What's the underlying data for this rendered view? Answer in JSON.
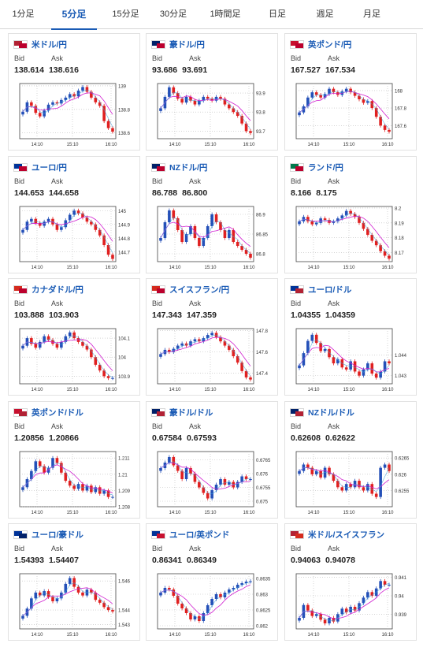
{
  "tabs": [
    {
      "label": "1分足"
    },
    {
      "label": "5分足"
    },
    {
      "label": "15分足"
    },
    {
      "label": "30分足"
    },
    {
      "label": "1時間足"
    },
    {
      "label": "日足"
    },
    {
      "label": "週足"
    },
    {
      "label": "月足"
    }
  ],
  "active_tab": "5分足",
  "labels": {
    "bid": "Bid",
    "ask": "Ask"
  },
  "colors": {
    "accent": "#1a5bb5",
    "up": "#2450b8",
    "down": "#e02020",
    "ma1": "#d020d0",
    "ma2": "#3aa0e0"
  },
  "pairs": [
    {
      "name": "米ドル/円",
      "bid": "138.614",
      "ask": "138.616",
      "flag": [
        "#b22234",
        "#bc002d"
      ]
    },
    {
      "name": "豪ドル/円",
      "bid": "93.686",
      "ask": "93.691",
      "flag": [
        "#012169",
        "#bc002d"
      ]
    },
    {
      "name": "英ポンド/円",
      "bid": "167.527",
      "ask": "167.534",
      "flag": [
        "#c8102e",
        "#bc002d"
      ]
    },
    {
      "name": "ユーロ/円",
      "bid": "144.653",
      "ask": "144.658",
      "flag": [
        "#003399",
        "#bc002d"
      ]
    },
    {
      "name": "NZドル/円",
      "bid": "86.788",
      "ask": "86.800",
      "flag": [
        "#012169",
        "#bc002d"
      ]
    },
    {
      "name": "ランド/円",
      "bid": "8.166",
      "ask": "8.175",
      "flag": [
        "#007a4d",
        "#bc002d"
      ]
    },
    {
      "name": "カナダドル/円",
      "bid": "103.888",
      "ask": "103.903",
      "flag": [
        "#d52b1e",
        "#bc002d"
      ]
    },
    {
      "name": "スイスフラン/円",
      "bid": "147.343",
      "ask": "147.359",
      "flag": [
        "#d52b1e",
        "#bc002d"
      ]
    },
    {
      "name": "ユーロ/ドル",
      "bid": "1.04355",
      "ask": "1.04359",
      "flag": [
        "#003399",
        "#b22234"
      ]
    },
    {
      "name": "英ポンド/ドル",
      "bid": "1.20856",
      "ask": "1.20866",
      "flag": [
        "#c8102e",
        "#b22234"
      ]
    },
    {
      "name": "豪ドル/ドル",
      "bid": "0.67584",
      "ask": "0.67593",
      "flag": [
        "#012169",
        "#b22234"
      ]
    },
    {
      "name": "NZドル/ドル",
      "bid": "0.62608",
      "ask": "0.62622",
      "flag": [
        "#012169",
        "#b22234"
      ]
    },
    {
      "name": "ユーロ/豪ドル",
      "bid": "1.54393",
      "ask": "1.54407",
      "flag": [
        "#003399",
        "#012169"
      ]
    },
    {
      "name": "ユーロ/英ポンド",
      "bid": "0.86341",
      "ask": "0.86349",
      "flag": [
        "#003399",
        "#c8102e"
      ]
    },
    {
      "name": "米ドル/スイスフラン",
      "bid": "0.94063",
      "ask": "0.94078",
      "flag": [
        "#b22234",
        "#d52b1e"
      ]
    }
  ],
  "chart_data": [
    {
      "type": "line",
      "series": [
        {
          "values": [
            138.78,
            138.86,
            138.83,
            138.77,
            138.74,
            138.79,
            138.84,
            138.86,
            138.85,
            138.88,
            138.9,
            138.93,
            138.91,
            138.96,
            138.99,
            138.95,
            138.9,
            138.86,
            138.83,
            138.7,
            138.64,
            138.61
          ]
        }
      ],
      "x_ticks": [
        "14:10",
        "15:10",
        "16:10"
      ],
      "y_ticks": [
        "139",
        "138.8",
        "138.6"
      ],
      "ylim": [
        138.55,
        139.02
      ]
    },
    {
      "type": "line",
      "series": [
        {
          "values": [
            93.82,
            93.88,
            93.93,
            93.9,
            93.87,
            93.85,
            93.88,
            93.86,
            93.84,
            93.86,
            93.88,
            93.87,
            93.86,
            93.88,
            93.87,
            93.84,
            93.82,
            93.8,
            93.78,
            93.74,
            93.7,
            93.69
          ]
        }
      ],
      "x_ticks": [
        "14:10",
        "15:10",
        "16:10"
      ],
      "y_ticks": [
        "93.9",
        "93.8",
        "93.7"
      ],
      "ylim": [
        93.66,
        93.95
      ]
    },
    {
      "type": "line",
      "series": [
        {
          "values": [
            167.75,
            167.82,
            167.92,
            167.98,
            167.95,
            167.92,
            167.96,
            168.02,
            167.98,
            167.95,
            167.99,
            168.02,
            167.98,
            167.94,
            167.9,
            167.86,
            167.88,
            167.8,
            167.7,
            167.6,
            167.55,
            167.53
          ]
        }
      ],
      "x_ticks": [
        "14:10",
        "15:10",
        "16:10"
      ],
      "y_ticks": [
        "168",
        "167.8",
        "167.6"
      ],
      "ylim": [
        167.45,
        168.08
      ]
    },
    {
      "type": "line",
      "series": [
        {
          "values": [
            144.86,
            144.92,
            144.94,
            144.91,
            144.89,
            144.92,
            144.94,
            144.9,
            144.86,
            144.88,
            144.93,
            144.97,
            145.0,
            144.98,
            144.95,
            144.92,
            144.9,
            144.86,
            144.82,
            144.75,
            144.68,
            144.65
          ]
        }
      ],
      "x_ticks": [
        "14:10",
        "15:10",
        "16:10"
      ],
      "y_ticks": [
        "145",
        "144.9",
        "144.8",
        "144.7"
      ],
      "ylim": [
        144.63,
        145.03
      ]
    },
    {
      "type": "line",
      "series": [
        {
          "values": [
            86.84,
            86.88,
            86.91,
            86.89,
            86.86,
            86.83,
            86.85,
            86.87,
            86.84,
            86.82,
            86.84,
            86.87,
            86.9,
            86.88,
            86.86,
            86.84,
            86.86,
            86.83,
            86.82,
            86.81,
            86.8,
            86.79
          ]
        }
      ],
      "x_ticks": [
        "14:10",
        "15:10",
        "16:10"
      ],
      "y_ticks": [
        "86.9",
        "86.85",
        "86.8"
      ],
      "ylim": [
        86.78,
        86.92
      ]
    },
    {
      "type": "line",
      "series": [
        {
          "values": [
            8.191,
            8.194,
            8.191,
            8.189,
            8.19,
            8.193,
            8.192,
            8.19,
            8.191,
            8.193,
            8.195,
            8.198,
            8.196,
            8.194,
            8.19,
            8.186,
            8.182,
            8.178,
            8.175,
            8.171,
            8.168,
            8.166
          ]
        }
      ],
      "x_ticks": [
        "14:10",
        "15:10",
        "16:10"
      ],
      "y_ticks": [
        "8.2",
        "8.19",
        "8.18",
        "8.17"
      ],
      "ylim": [
        8.164,
        8.201
      ]
    },
    {
      "type": "line",
      "series": [
        {
          "values": [
            104.06,
            104.1,
            104.07,
            104.05,
            104.08,
            104.11,
            104.09,
            104.07,
            104.05,
            104.08,
            104.11,
            104.13,
            104.1,
            104.08,
            104.06,
            104.04,
            104.0,
            103.96,
            103.93,
            103.9,
            103.89,
            103.89
          ]
        }
      ],
      "x_ticks": [
        "14:10",
        "15:10",
        "16:10"
      ],
      "y_ticks": [
        "104.1",
        "104",
        "103.9"
      ],
      "ylim": [
        103.86,
        104.15
      ]
    },
    {
      "type": "line",
      "series": [
        {
          "values": [
            147.58,
            147.62,
            147.6,
            147.63,
            147.66,
            147.68,
            147.66,
            147.7,
            147.72,
            147.7,
            147.73,
            147.76,
            147.78,
            147.74,
            147.7,
            147.66,
            147.62,
            147.56,
            147.5,
            147.42,
            147.36,
            147.34
          ]
        }
      ],
      "x_ticks": [
        "14:10",
        "15:10",
        "16:10"
      ],
      "y_ticks": [
        "147.8",
        "147.6",
        "147.4"
      ],
      "ylim": [
        147.3,
        147.82
      ]
    },
    {
      "type": "line",
      "series": [
        {
          "values": [
            1.0435,
            1.0441,
            1.0447,
            1.045,
            1.0446,
            1.0442,
            1.0443,
            1.0439,
            1.0436,
            1.0438,
            1.0434,
            1.0433,
            1.0437,
            1.0432,
            1.043,
            1.0433,
            1.0436,
            1.0431,
            1.0429,
            1.0432,
            1.0437,
            1.0436
          ]
        }
      ],
      "x_ticks": [
        "14:10",
        "15:10",
        "16:10"
      ],
      "y_ticks": [
        "1.044",
        "1.043"
      ],
      "ylim": [
        1.0426,
        1.0453
      ]
    },
    {
      "type": "line",
      "series": [
        {
          "values": [
            1.2092,
            1.2097,
            1.2102,
            1.2108,
            1.2105,
            1.2101,
            1.2104,
            1.211,
            1.2107,
            1.2101,
            1.2096,
            1.2093,
            1.2091,
            1.2094,
            1.209,
            1.2093,
            1.2089,
            1.2092,
            1.2088,
            1.209,
            1.2086,
            1.2086
          ]
        }
      ],
      "x_ticks": [
        "14:10",
        "15:10",
        "16:10"
      ],
      "y_ticks": [
        "1.211",
        "1.21",
        "1.209",
        "1.208"
      ],
      "ylim": [
        1.208,
        1.2114
      ]
    },
    {
      "type": "line",
      "series": [
        {
          "values": [
            0.6762,
            0.6764,
            0.6766,
            0.6763,
            0.6761,
            0.6758,
            0.6762,
            0.676,
            0.6757,
            0.6755,
            0.6753,
            0.6751,
            0.6754,
            0.6756,
            0.6758,
            0.6756,
            0.6757,
            0.6755,
            0.6757,
            0.6759,
            0.6758,
            0.6758
          ]
        }
      ],
      "x_ticks": [
        "14:10",
        "15:10",
        "16:10"
      ],
      "y_ticks": [
        "0.6765",
        "0.676",
        "0.6755",
        "0.675"
      ],
      "ylim": [
        0.6748,
        0.6768
      ]
    },
    {
      "type": "line",
      "series": [
        {
          "values": [
            0.6261,
            0.6263,
            0.6262,
            0.626,
            0.6261,
            0.6259,
            0.6262,
            0.626,
            0.6258,
            0.6256,
            0.6255,
            0.6257,
            0.6256,
            0.6258,
            0.6256,
            0.6255,
            0.6257,
            0.6254,
            0.6253,
            0.6262,
            0.6263,
            0.6261
          ]
        }
      ],
      "x_ticks": [
        "14:10",
        "15:10",
        "16:10"
      ],
      "y_ticks": [
        "0.6265",
        "0.626",
        "0.6255"
      ],
      "ylim": [
        0.625,
        0.6267
      ]
    },
    {
      "type": "line",
      "series": [
        {
          "values": [
            1.5436,
            1.5441,
            1.5448,
            1.5452,
            1.545,
            1.5453,
            1.5449,
            1.5446,
            1.5448,
            1.5452,
            1.5458,
            1.5462,
            1.5456,
            1.5452,
            1.545,
            1.5454,
            1.5452,
            1.5447,
            1.5445,
            1.5442,
            1.544,
            1.5439
          ]
        }
      ],
      "x_ticks": [
        "14:10",
        "15:10",
        "16:10"
      ],
      "y_ticks": [
        "1.546",
        "1.544",
        "1.543"
      ],
      "ylim": [
        1.5427,
        1.5465
      ]
    },
    {
      "type": "line",
      "series": [
        {
          "values": [
            0.86305,
            0.8632,
            0.86315,
            0.86295,
            0.8627,
            0.86255,
            0.8624,
            0.8622,
            0.8623,
            0.86215,
            0.8624,
            0.86265,
            0.86285,
            0.863,
            0.8629,
            0.86305,
            0.86315,
            0.8632,
            0.8633,
            0.86335,
            0.8634,
            0.86341
          ]
        }
      ],
      "x_ticks": [
        "14:10",
        "15:10",
        "16:10"
      ],
      "y_ticks": [
        "0.8635",
        "0.863",
        "0.8625",
        "0.862"
      ],
      "ylim": [
        0.8619,
        0.86365
      ]
    },
    {
      "type": "line",
      "series": [
        {
          "values": [
            0.9388,
            0.9395,
            0.9392,
            0.9389,
            0.939,
            0.9387,
            0.9385,
            0.9388,
            0.9386,
            0.939,
            0.9393,
            0.9391,
            0.9394,
            0.9392,
            0.9396,
            0.9399,
            0.9402,
            0.94,
            0.9404,
            0.9408,
            0.9406,
            0.9406
          ]
        }
      ],
      "x_ticks": [
        "14:10",
        "15:10",
        "16:10"
      ],
      "y_ticks": [
        "0.941",
        "0.94",
        "0.939"
      ],
      "ylim": [
        0.9382,
        0.9412
      ]
    }
  ]
}
